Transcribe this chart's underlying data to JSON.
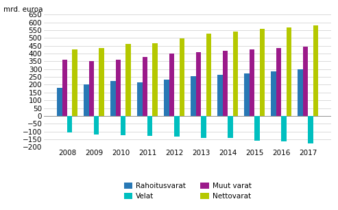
{
  "years": [
    2008,
    2009,
    2010,
    2011,
    2012,
    2013,
    2014,
    2015,
    2016,
    2017
  ],
  "rahoitusvarat": [
    182,
    202,
    222,
    215,
    233,
    253,
    265,
    273,
    287,
    300
  ],
  "muut_varat": [
    360,
    350,
    360,
    378,
    401,
    410,
    418,
    425,
    435,
    445
  ],
  "velat": [
    -105,
    -118,
    -125,
    -130,
    -135,
    -142,
    -140,
    -158,
    -162,
    -175
  ],
  "nettovarat": [
    428,
    436,
    462,
    465,
    498,
    528,
    540,
    558,
    568,
    582
  ],
  "bar_colors": {
    "rahoitusvarat": "#2878b5",
    "muut_varat": "#9b1a8a",
    "velat": "#00bfbf",
    "nettovarat": "#b5c800"
  },
  "ylabel": "mrd. euroa",
  "ylim": [
    -200,
    650
  ],
  "yticks": [
    -200,
    -150,
    -100,
    -50,
    0,
    50,
    100,
    150,
    200,
    250,
    300,
    350,
    400,
    450,
    500,
    550,
    600,
    650
  ],
  "legend_labels": [
    "Rahoitusvarat",
    "Muut varat",
    "Velat",
    "Nettovarat"
  ],
  "bar_width": 0.19,
  "background_color": "#ffffff",
  "grid_color": "#cccccc"
}
